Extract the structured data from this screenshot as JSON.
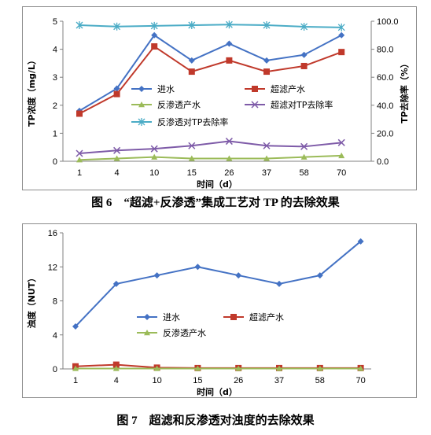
{
  "figures": [
    {
      "caption": "图 6　“超滤+反渗透”集成工艺对 TP 的去除效果",
      "chart_data": {
        "type": "line",
        "categories": [
          "1",
          "4",
          "10",
          "15",
          "26",
          "37",
          "58",
          "70"
        ],
        "xlabel": "时间（d）",
        "ylabel": "TP浓度（mg/L）",
        "ylabel_right": "TP去除率（%）",
        "ylim": [
          0,
          5
        ],
        "yticks": [
          "0",
          "1",
          "2",
          "3",
          "4",
          "5"
        ],
        "ylim_right": [
          0,
          100
        ],
        "yticks_right": [
          "0.0",
          "20.0",
          "40.0",
          "60.0",
          "80.0",
          "100.0"
        ],
        "grid": false,
        "legend_position": "inside-center",
        "series": [
          {
            "name": "进水",
            "axis": "left",
            "color": "#4472C4",
            "marker": "diamond",
            "values": [
              1.8,
              2.6,
              4.5,
              3.6,
              4.2,
              3.6,
              3.8,
              4.5
            ]
          },
          {
            "name": "超滤产水",
            "axis": "left",
            "color": "#C0392B",
            "marker": "square",
            "values": [
              1.7,
              2.4,
              4.1,
              3.2,
              3.6,
              3.2,
              3.4,
              3.9
            ]
          },
          {
            "name": "反渗透产水",
            "axis": "left",
            "color": "#9BBB59",
            "marker": "triangle",
            "values": [
              0.05,
              0.1,
              0.15,
              0.1,
              0.1,
              0.1,
              0.15,
              0.2
            ]
          },
          {
            "name": "超滤对TP去除率",
            "axis": "right",
            "color": "#7E5BA8",
            "marker": "x",
            "values": [
              5.6,
              7.7,
              8.9,
              11.1,
              14.3,
              11.1,
              10.5,
              13.3
            ]
          },
          {
            "name": "反渗透对TP去除率",
            "axis": "right",
            "color": "#4BACC6",
            "marker": "star",
            "values": [
              97.2,
              96.2,
              96.7,
              97.2,
              97.6,
              97.2,
              96.1,
              95.6
            ]
          }
        ]
      }
    },
    {
      "caption": "图 7　超滤和反渗透对浊度的去除效果",
      "chart_data": {
        "type": "line",
        "categories": [
          "1",
          "4",
          "10",
          "15",
          "26",
          "37",
          "58",
          "70"
        ],
        "xlabel": "时间（d）",
        "ylabel": "浊度（NUT）",
        "ylim": [
          0,
          16
        ],
        "yticks": [
          "0",
          "4",
          "8",
          "12",
          "16"
        ],
        "grid": false,
        "legend_position": "inside-center",
        "series": [
          {
            "name": "进水",
            "axis": "left",
            "color": "#4472C4",
            "marker": "diamond",
            "values": [
              5,
              10,
              11,
              12,
              11,
              10,
              11,
              15
            ]
          },
          {
            "name": "超滤产水",
            "axis": "left",
            "color": "#C0392B",
            "marker": "square",
            "values": [
              0.3,
              0.5,
              0.15,
              0.1,
              0.1,
              0.1,
              0.1,
              0.1
            ]
          },
          {
            "name": "反渗透产水",
            "axis": "left",
            "color": "#9BBB59",
            "marker": "triangle",
            "values": [
              0.05,
              0.05,
              0.05,
              0.05,
              0.05,
              0.05,
              0.05,
              0.05
            ]
          }
        ]
      }
    }
  ]
}
